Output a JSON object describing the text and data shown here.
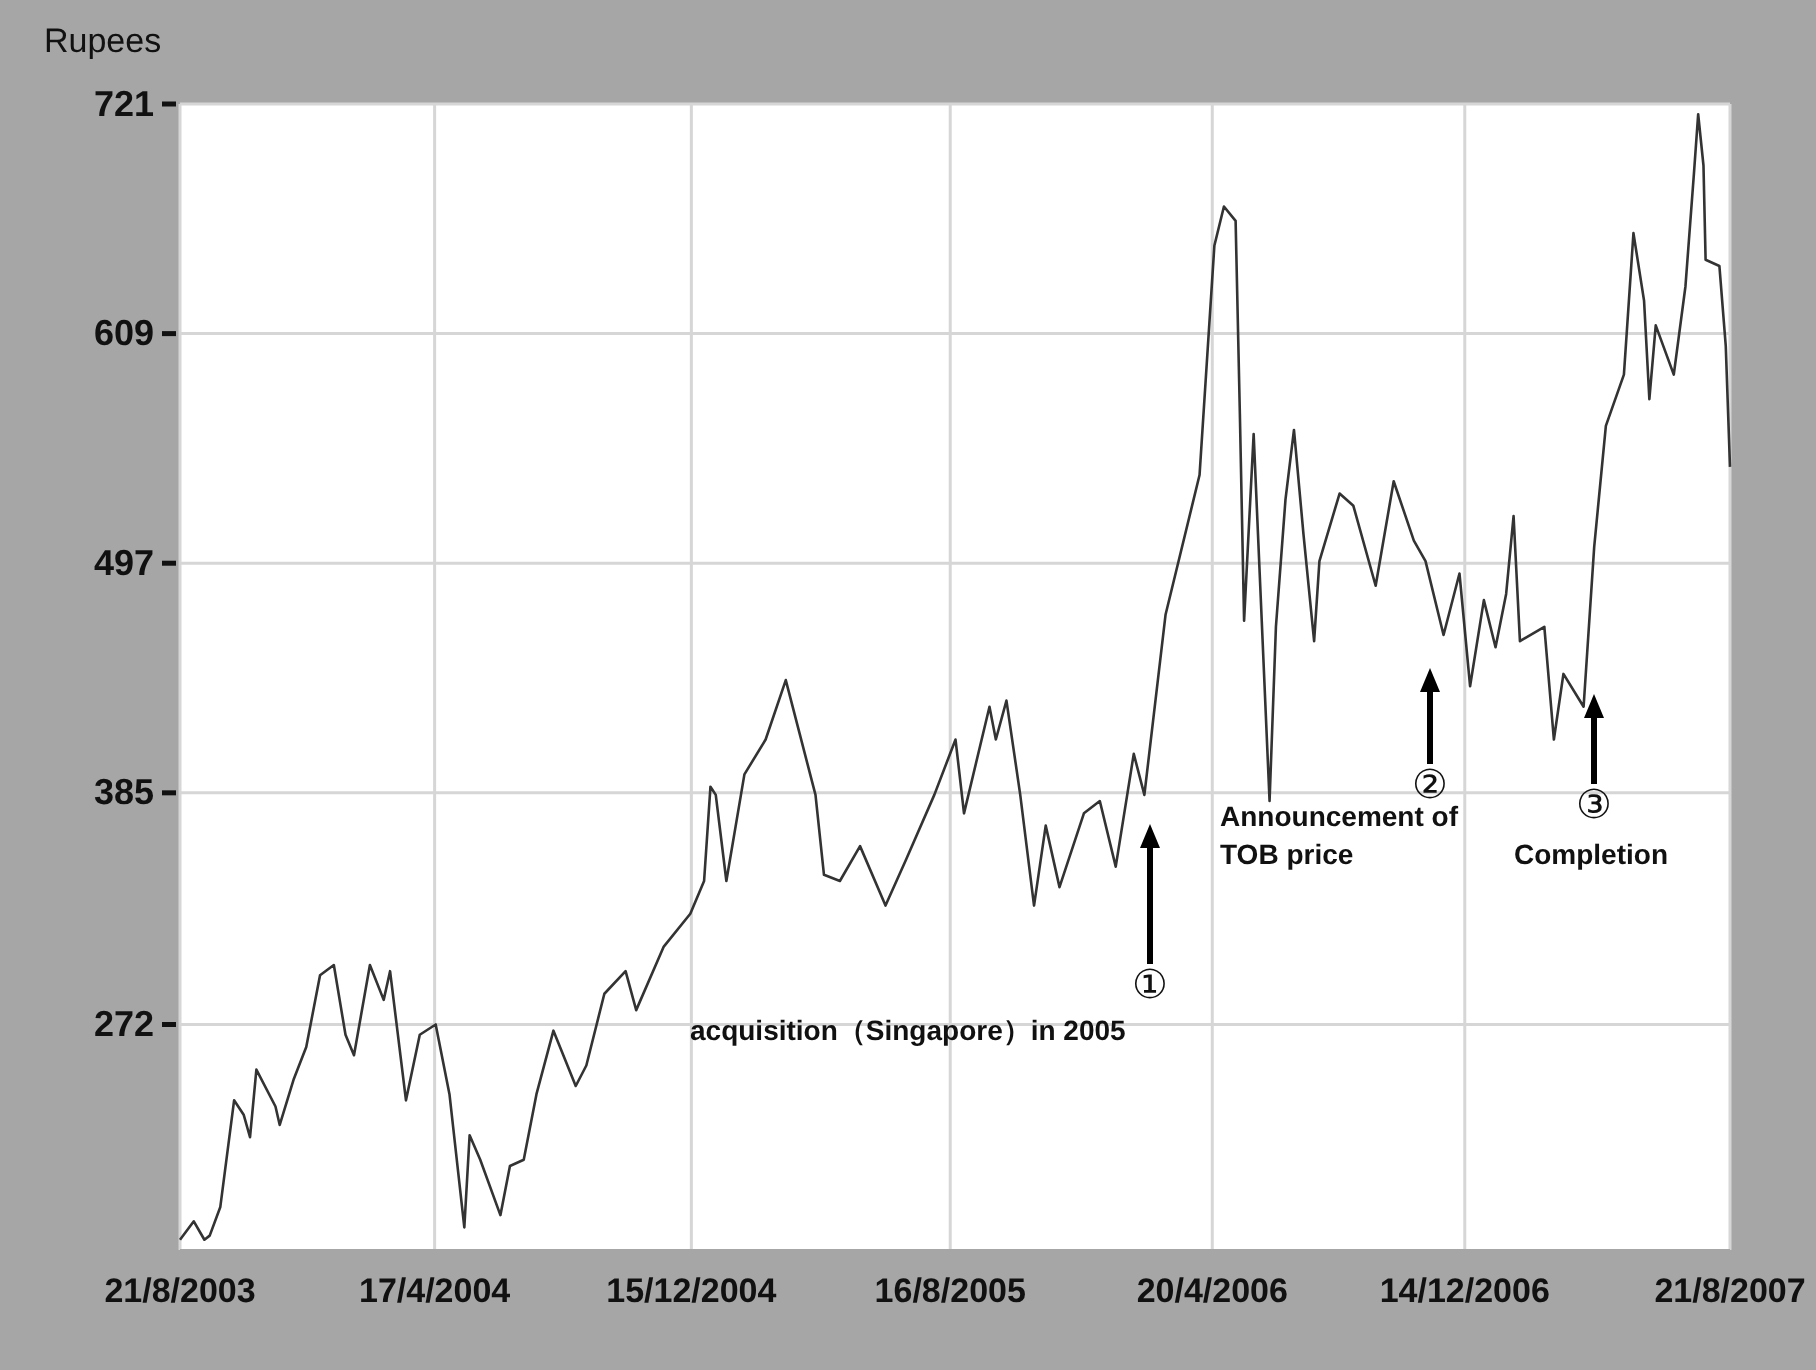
{
  "chart_data": {
    "type": "line",
    "ylabel": "Rupees",
    "xlim": [
      "2003-08-21",
      "2007-08-21"
    ],
    "xticks": [
      {
        "value": "2003-08-21",
        "label": "21/8/2003"
      },
      {
        "value": "2004-04-17",
        "label": "17/4/2004"
      },
      {
        "value": "2004-12-15",
        "label": "15/12/2004"
      },
      {
        "value": "2005-08-16",
        "label": "16/8/2005"
      },
      {
        "value": "2006-04-20",
        "label": "20/4/2006"
      },
      {
        "value": "2006-12-14",
        "label": "14/12/2006"
      },
      {
        "value": "2007-08-21",
        "label": "21/8/2007"
      }
    ],
    "ylim": [
      162,
      721
    ],
    "yticks": [
      272,
      385,
      497,
      609,
      721
    ],
    "grid": true,
    "series": [
      {
        "color": "#333333",
        "x": [
          "2003-08-21",
          "2003-09-03",
          "2003-09-13",
          "2003-09-18",
          "2003-09-28",
          "2003-10-11",
          "2003-10-20",
          "2003-10-26",
          "2003-11-01",
          "2003-11-19",
          "2003-11-23",
          "2003-12-06",
          "2003-12-18",
          "2003-12-31",
          "2004-01-13",
          "2004-01-24",
          "2004-02-01",
          "2004-02-16",
          "2004-02-29",
          "2004-03-06",
          "2004-03-21",
          "2004-04-03",
          "2004-04-18",
          "2004-05-01",
          "2004-05-15",
          "2004-05-20",
          "2004-05-30",
          "2004-06-18",
          "2004-06-27",
          "2004-07-10",
          "2004-07-22",
          "2004-08-07",
          "2004-08-28",
          "2004-09-07",
          "2004-09-24",
          "2004-10-14",
          "2004-10-24",
          "2004-11-19",
          "2004-12-14",
          "2004-12-27",
          "2005-01-02",
          "2005-01-07",
          "2005-01-17",
          "2005-02-03",
          "2005-02-23",
          "2005-03-14",
          "2005-03-27",
          "2005-04-11",
          "2005-04-19",
          "2005-05-04",
          "2005-05-23",
          "2005-06-16",
          "2005-07-05",
          "2005-08-01",
          "2005-08-21",
          "2005-08-29",
          "2005-09-22",
          "2005-09-28",
          "2005-10-08",
          "2005-10-21",
          "2005-11-03",
          "2005-11-14",
          "2005-11-27",
          "2005-12-20",
          "2006-01-04",
          "2006-01-19",
          "2006-02-05",
          "2006-02-15",
          "2006-03-07",
          "2006-04-08",
          "2006-04-22",
          "2006-05-01",
          "2006-05-12",
          "2006-05-16",
          "2006-05-20",
          "2006-05-29",
          "2006-06-13",
          "2006-06-19",
          "2006-06-28",
          "2006-07-06",
          "2006-07-15",
          "2006-07-25",
          "2006-07-30",
          "2006-08-18",
          "2006-08-31",
          "2006-09-21",
          "2006-10-08",
          "2006-10-27",
          "2006-11-07",
          "2006-11-24",
          "2006-12-09",
          "2006-12-19",
          "2007-01-01",
          "2007-01-12",
          "2007-01-22",
          "2007-01-29",
          "2007-02-04",
          "2007-02-27",
          "2007-03-08",
          "2007-03-17",
          "2007-04-05",
          "2007-04-15",
          "2007-04-26",
          "2007-05-13",
          "2007-05-22",
          "2007-06-01",
          "2007-06-06",
          "2007-06-12",
          "2007-06-29",
          "2007-07-10",
          "2007-07-18",
          "2007-07-22",
          "2007-07-27",
          "2007-07-29",
          "2007-08-11",
          "2007-08-17",
          "2007-08-21"
        ],
        "values": [
          167,
          176,
          167,
          169,
          183,
          235,
          228,
          217,
          250,
          232,
          223,
          245,
          261,
          296,
          301,
          267,
          257,
          301,
          284,
          298,
          235,
          267,
          272,
          238,
          173,
          218,
          206,
          179,
          203,
          206,
          238,
          269,
          242,
          252,
          287,
          298,
          279,
          310,
          326,
          342,
          388,
          384,
          342,
          394,
          411,
          440,
          414,
          384,
          345,
          342,
          359,
          330,
          352,
          384,
          411,
          375,
          427,
          411,
          430,
          384,
          330,
          369,
          339,
          375,
          381,
          349,
          404,
          384,
          472,
          540,
          652,
          671,
          664,
          570,
          469,
          560,
          381,
          466,
          528,
          562,
          511,
          459,
          498,
          531,
          525,
          486,
          537,
          508,
          498,
          462,
          492,
          437,
          479,
          456,
          482,
          520,
          459,
          466,
          411,
          443,
          427,
          505,
          564,
          589,
          658,
          625,
          577,
          613,
          589,
          632,
          687,
          716,
          691,
          645,
          642,
          603,
          544
        ]
      }
    ],
    "annotations": [
      "①",
      "acquisition（Singapore）in 2005",
      "②",
      "Announcement of TOB price",
      "③",
      "Completion"
    ]
  }
}
